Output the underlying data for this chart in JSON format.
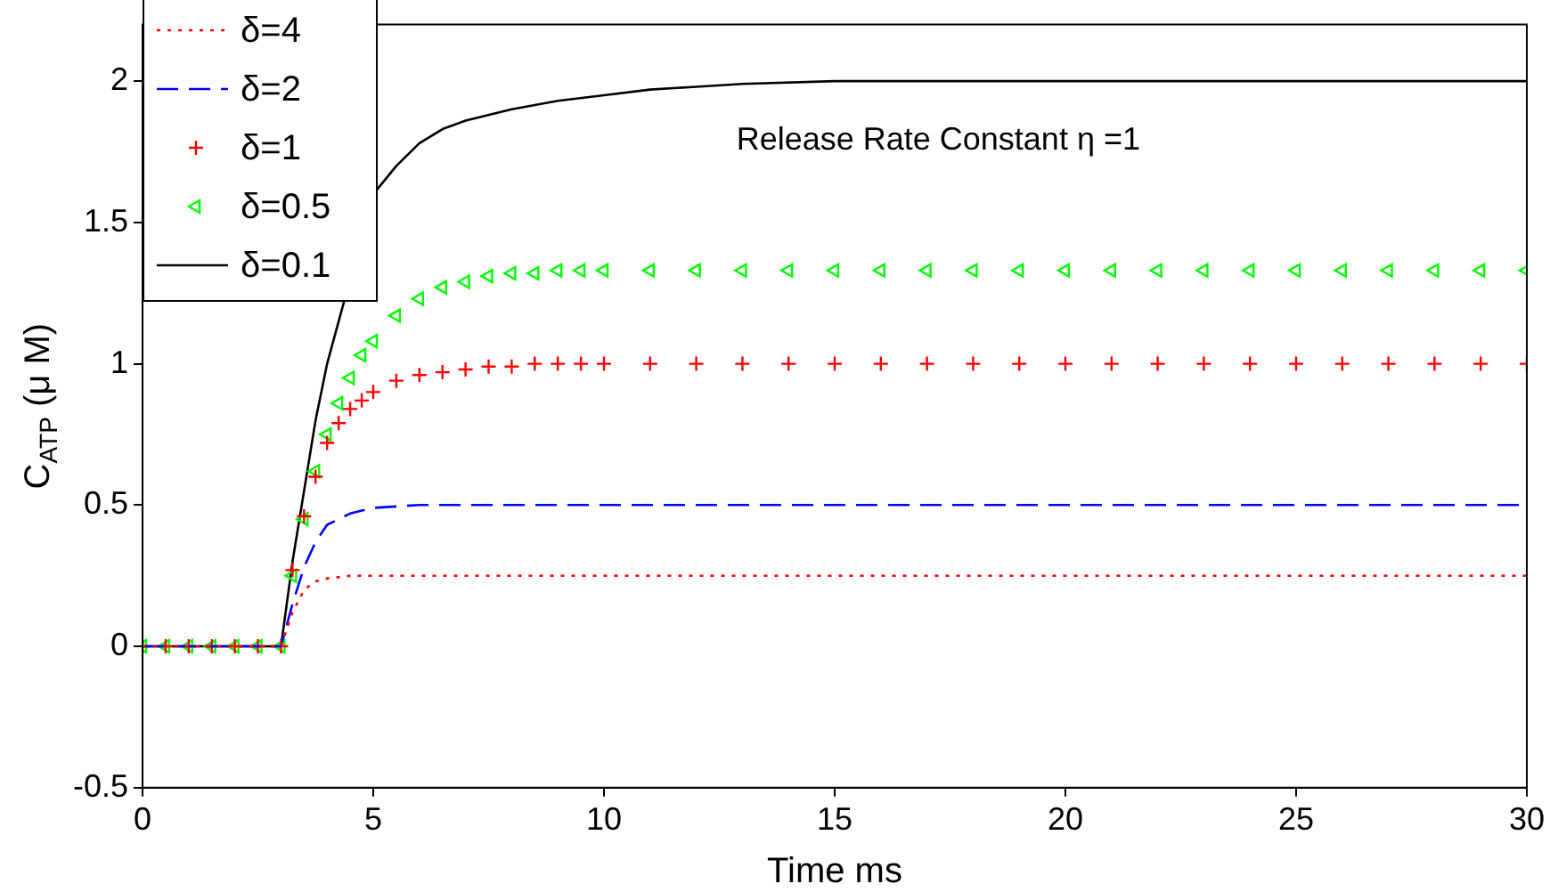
{
  "chart_data": {
    "type": "line",
    "xlabel": "Time ms",
    "ylabel": "C$_{ATP}$ (μ M)",
    "annotations": [
      "Release Rate Constant η =1"
    ],
    "xlim": [
      0,
      30
    ],
    "ylim": [
      -0.5,
      2.2
    ],
    "xticks": [
      0,
      5,
      10,
      15,
      20,
      25,
      30
    ],
    "yticks": [
      -0.5,
      0,
      0.5,
      1,
      1.5,
      2
    ],
    "legend": "top left",
    "series": [
      {
        "name": "δ=4",
        "type": "line",
        "line_style": "dotted",
        "color": "#ff0000",
        "x": [
          0,
          3,
          3.25,
          3.5,
          3.75,
          4,
          4.5,
          30
        ],
        "values": [
          0,
          0,
          0.12,
          0.2,
          0.23,
          0.24,
          0.25,
          0.25
        ]
      },
      {
        "name": "δ=2",
        "type": "line",
        "line_style": "dashed",
        "color": "#0000ff",
        "x": [
          0,
          3,
          3.25,
          3.5,
          3.75,
          4,
          4.5,
          5,
          6,
          30
        ],
        "values": [
          0,
          0,
          0.15,
          0.28,
          0.37,
          0.43,
          0.47,
          0.49,
          0.5,
          0.5
        ]
      },
      {
        "name": "δ=1",
        "type": "scatter",
        "marker": "cross",
        "color": "#ff0000",
        "x": [
          0,
          0.5,
          1,
          1.5,
          2,
          2.5,
          3,
          3.25,
          3.5,
          3.75,
          4,
          4.25,
          4.5,
          4.75,
          5,
          5.5,
          6,
          6.5,
          7,
          7.5,
          8,
          8.5,
          9,
          9.5,
          10,
          11,
          12,
          13,
          14,
          15,
          16,
          17,
          18,
          19,
          20,
          21,
          22,
          23,
          24,
          25,
          26,
          27,
          28,
          29,
          30
        ],
        "values": [
          0,
          0,
          0,
          0,
          0,
          0,
          0,
          0.27,
          0.46,
          0.6,
          0.72,
          0.79,
          0.84,
          0.87,
          0.9,
          0.94,
          0.96,
          0.97,
          0.98,
          0.99,
          0.99,
          1,
          1,
          1,
          1,
          1,
          1,
          1,
          1,
          1,
          1,
          1,
          1,
          1,
          1,
          1,
          1,
          1,
          1,
          1,
          1,
          1,
          1,
          1,
          1
        ]
      },
      {
        "name": "δ=0.5",
        "type": "scatter",
        "marker": "triangle",
        "color": "#00ff00",
        "x": [
          0,
          0.5,
          1,
          1.5,
          2,
          2.5,
          3,
          3.25,
          3.5,
          3.75,
          4,
          4.25,
          4.5,
          4.75,
          5,
          5.5,
          6,
          6.5,
          7,
          7.5,
          8,
          8.5,
          9,
          9.5,
          10,
          11,
          12,
          13,
          14,
          15,
          16,
          17,
          18,
          19,
          20,
          21,
          22,
          23,
          24,
          25,
          26,
          27,
          28,
          29,
          30
        ],
        "values": [
          0,
          0,
          0,
          0,
          0,
          0,
          0,
          0.25,
          0.45,
          0.62,
          0.75,
          0.86,
          0.95,
          1.03,
          1.08,
          1.17,
          1.23,
          1.27,
          1.29,
          1.31,
          1.32,
          1.32,
          1.33,
          1.33,
          1.33,
          1.33,
          1.33,
          1.33,
          1.33,
          1.33,
          1.33,
          1.33,
          1.33,
          1.33,
          1.33,
          1.33,
          1.33,
          1.33,
          1.33,
          1.33,
          1.33,
          1.33,
          1.33,
          1.33,
          1.33
        ]
      },
      {
        "name": "δ=0.1",
        "type": "line",
        "line_style": "solid",
        "color": "#000000",
        "x": [
          0,
          3,
          3.25,
          3.5,
          3.75,
          4,
          4.5,
          5,
          5.5,
          6,
          6.5,
          7,
          8,
          9,
          10,
          11,
          12,
          13,
          15,
          30
        ],
        "values": [
          0,
          0,
          0.3,
          0.55,
          0.8,
          1.0,
          null,
          1.6,
          1.7,
          1.78,
          1.83,
          1.86,
          1.9,
          1.93,
          1.95,
          1.97,
          1.98,
          1.99,
          2,
          2
        ]
      }
    ]
  }
}
